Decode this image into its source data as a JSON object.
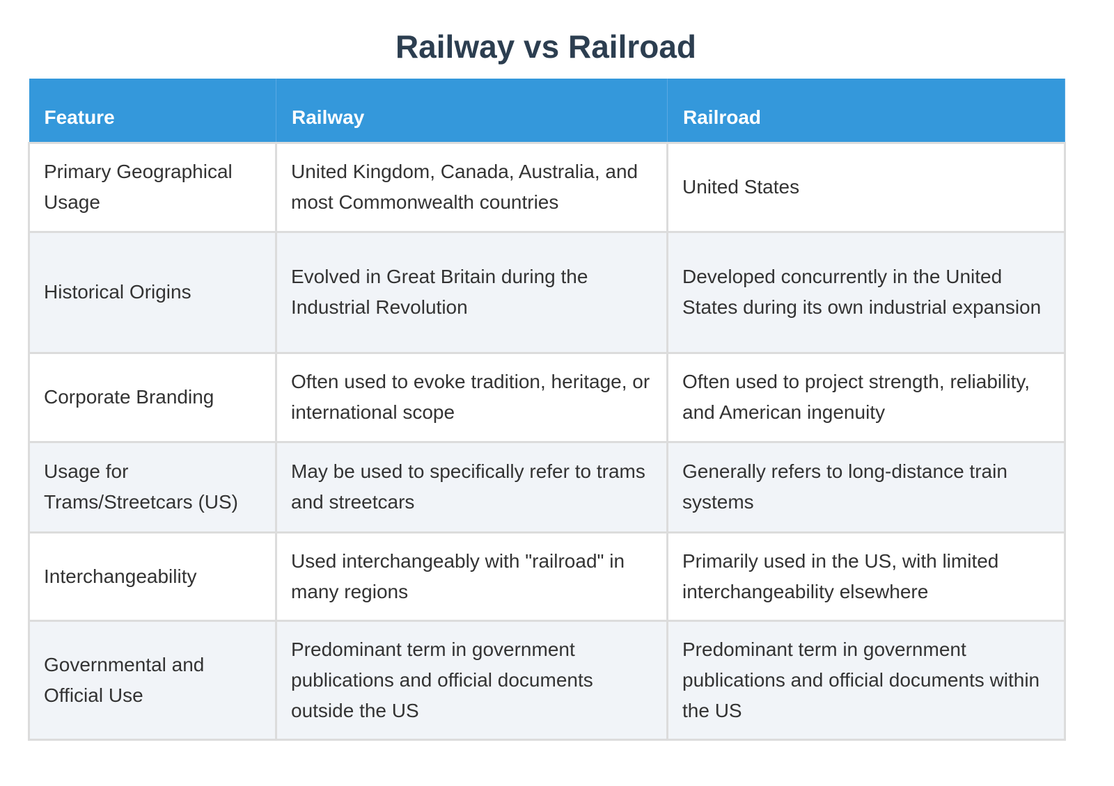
{
  "title": "Railway vs Railroad",
  "headers": [
    "Feature",
    "Railway",
    "Railroad"
  ],
  "rows": [
    [
      "Primary Geographical Usage",
      "United Kingdom, Canada, Australia, and most Commonwealth countries",
      "United States"
    ],
    [
      "Historical Origins",
      "Evolved in Great Britain during the Industrial Revolution",
      "Developed concurrently in the United States during its own industrial expansion"
    ],
    [
      "Corporate Branding",
      "Often used to evoke tradition, heritage, or international scope",
      "Often used to project strength, reliability, and American ingenuity"
    ],
    [
      "Usage for Trams/Streetcars (US)",
      "May be used to specifically refer to trams and streetcars",
      "Generally refers to long-distance train systems"
    ],
    [
      "Interchangeability",
      "Used interchangeably with \"railroad\" in many regions",
      "Primarily used in the US, with limited interchangeability elsewhere"
    ],
    [
      "Governmental and Official Use",
      "Predominant term in government publications and official documents outside the US",
      "Predominant term in government publications and official documents within the US"
    ]
  ],
  "colors": {
    "header": "#3498db",
    "title": "#2c3e50",
    "stripe": "#f1f4f8"
  }
}
